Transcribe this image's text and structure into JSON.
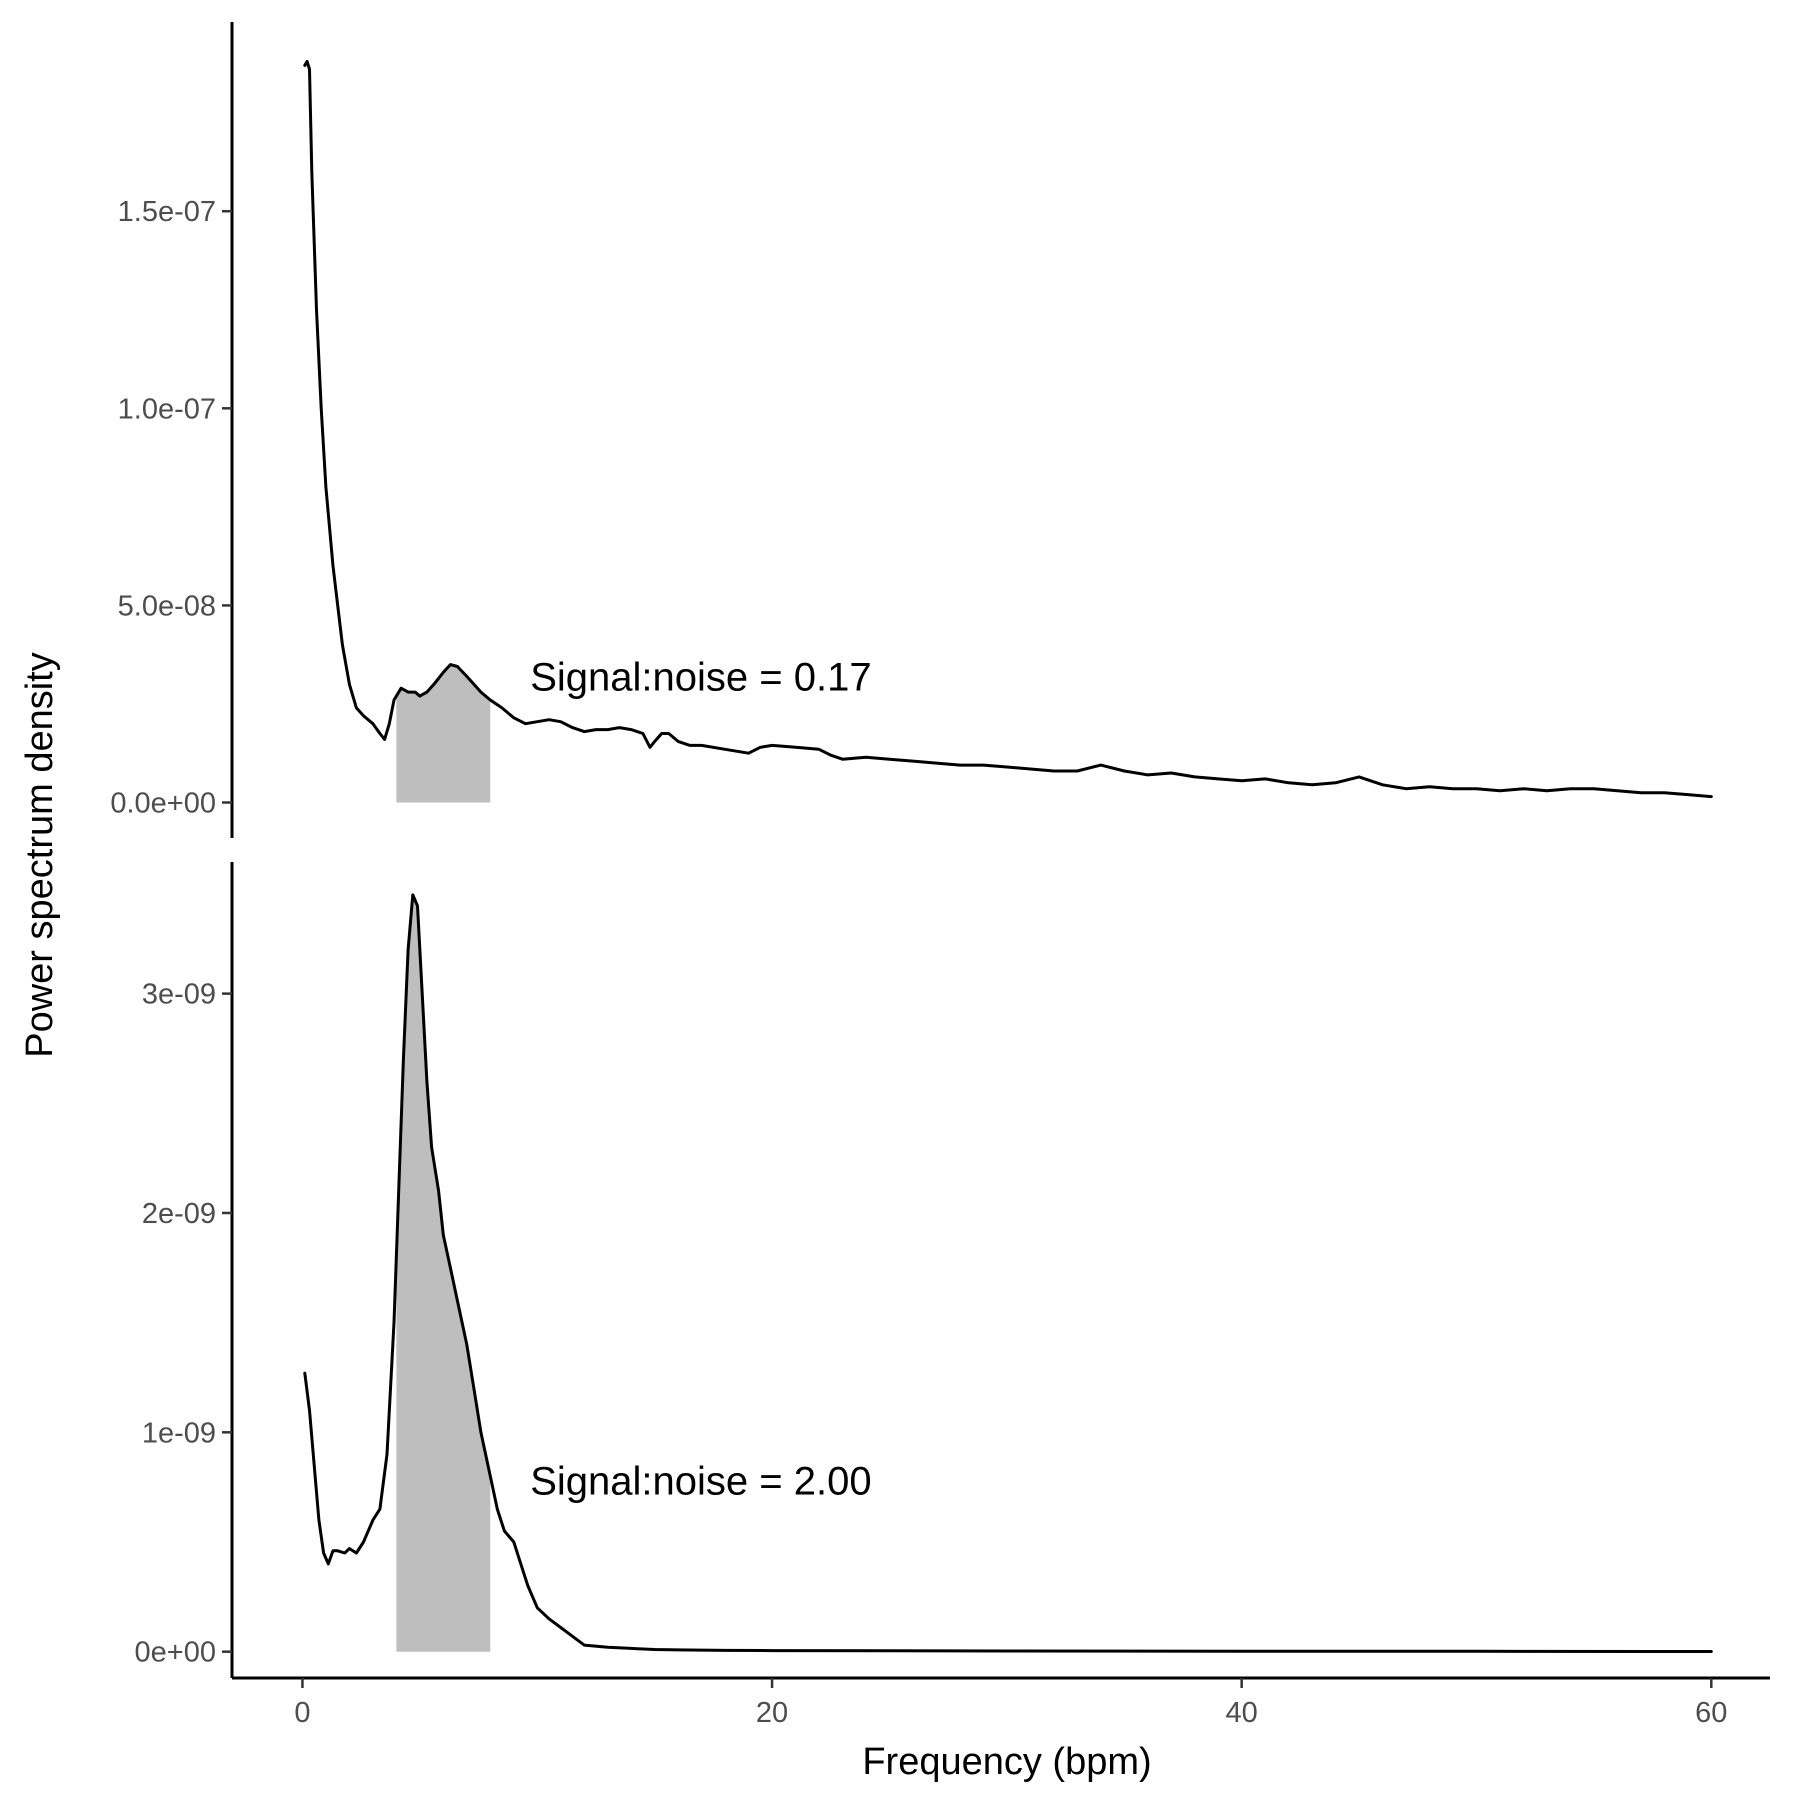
{
  "chart_data": {
    "type": "line",
    "xlabel": "Frequency (bpm)",
    "ylabel": "Power spectrum density",
    "colors": {
      "line": "#000000",
      "band": "#bebebe"
    },
    "shared_x": {
      "ticks": [
        0,
        20,
        40,
        60
      ],
      "tick_labels": [
        "0",
        "20",
        "40",
        "60"
      ],
      "xlim": [
        -3,
        62.5
      ]
    },
    "panels": [
      {
        "ylim": [
          -9e-09,
          1.98e-07
        ],
        "y_ticks": [
          0,
          5e-08,
          1e-07,
          1.5e-07
        ],
        "y_tick_labels": [
          "0.0e+00",
          "5.0e-08",
          "1.0e-07",
          "1.5e-07"
        ],
        "band": [
          4,
          8
        ],
        "annotation": {
          "text": "Signal:noise = 0.17",
          "x": 9.7,
          "y": 3.2e-08
        },
        "x": [
          0.1,
          0.2,
          0.3,
          0.4,
          0.6,
          0.8,
          1.0,
          1.3,
          1.5,
          1.7,
          2.0,
          2.3,
          2.6,
          3.0,
          3.3,
          3.5,
          3.7,
          3.9,
          4.2,
          4.5,
          4.8,
          5.0,
          5.3,
          5.6,
          6.0,
          6.3,
          6.6,
          7.0,
          7.3,
          7.6,
          8.0,
          8.5,
          9.0,
          9.5,
          10.0,
          10.5,
          11.0,
          11.5,
          12.0,
          12.5,
          13.0,
          13.5,
          14.0,
          14.5,
          14.8,
          15.0,
          15.3,
          15.6,
          16.0,
          16.5,
          17.0,
          18.0,
          19.0,
          19.5,
          20.0,
          21.0,
          22.0,
          22.5,
          23.0,
          24.0,
          25.0,
          26.0,
          27.0,
          28.0,
          29.0,
          30.0,
          31.0,
          32.0,
          33.0,
          34.0,
          35.0,
          36.0,
          37.0,
          38.0,
          39.0,
          40.0,
          41.0,
          42.0,
          43.0,
          44.0,
          45.0,
          46.0,
          47.0,
          48.0,
          49.0,
          50.0,
          51.0,
          52.0,
          53.0,
          54.0,
          55.0,
          56.0,
          57.0,
          58.0,
          59.0,
          60.0
        ],
        "y": [
          1.87e-07,
          1.88e-07,
          1.86e-07,
          1.6e-07,
          1.25e-07,
          1e-07,
          8e-08,
          6e-08,
          5e-08,
          4e-08,
          3e-08,
          2.4e-08,
          2.2e-08,
          2e-08,
          1.75e-08,
          1.6e-08,
          2e-08,
          2.6e-08,
          2.9e-08,
          2.8e-08,
          2.8e-08,
          2.7e-08,
          2.8e-08,
          3e-08,
          3.3e-08,
          3.5e-08,
          3.45e-08,
          3.2e-08,
          3e-08,
          2.8e-08,
          2.6e-08,
          2.4e-08,
          2.15e-08,
          2e-08,
          2.05e-08,
          2.1e-08,
          2.05e-08,
          1.9e-08,
          1.8e-08,
          1.85e-08,
          1.85e-08,
          1.9e-08,
          1.85e-08,
          1.75e-08,
          1.4e-08,
          1.55e-08,
          1.75e-08,
          1.75e-08,
          1.55e-08,
          1.45e-08,
          1.45e-08,
          1.35e-08,
          1.25e-08,
          1.4e-08,
          1.45e-08,
          1.4e-08,
          1.35e-08,
          1.2e-08,
          1.1e-08,
          1.15e-08,
          1.1e-08,
          1.05e-08,
          1e-08,
          9.5e-09,
          9.5e-09,
          9e-09,
          8.5e-09,
          8e-09,
          8e-09,
          9.5e-09,
          8e-09,
          7e-09,
          7.5e-09,
          6.5e-09,
          6e-09,
          5.5e-09,
          6e-09,
          5e-09,
          4.5e-09,
          5e-09,
          6.5e-09,
          4.5e-09,
          3.5e-09,
          4e-09,
          3.5e-09,
          3.5e-09,
          3e-09,
          3.5e-09,
          3e-09,
          3.5e-09,
          3.5e-09,
          3e-09,
          2.5e-09,
          2.5e-09,
          2e-09,
          1.5e-09
        ]
      },
      {
        "ylim": [
          -1.2e-10,
          3.6e-09
        ],
        "y_ticks": [
          0,
          1e-09,
          2e-09,
          3e-09
        ],
        "y_tick_labels": [
          "0e+00",
          "1e-09",
          "2e-09",
          "3e-09"
        ],
        "band": [
          4,
          8
        ],
        "annotation": {
          "text": "Signal:noise = 2.00",
          "x": 9.7,
          "y": 7.8e-10
        },
        "x": [
          0.1,
          0.3,
          0.5,
          0.7,
          0.9,
          1.1,
          1.3,
          1.5,
          1.8,
          2.0,
          2.3,
          2.6,
          3.0,
          3.3,
          3.6,
          3.9,
          4.1,
          4.3,
          4.5,
          4.7,
          4.9,
          5.1,
          5.3,
          5.5,
          5.8,
          6.0,
          6.3,
          6.6,
          7.0,
          7.3,
          7.6,
          8.0,
          8.3,
          8.6,
          9.0,
          9.3,
          9.6,
          10.0,
          10.5,
          11.0,
          11.5,
          12.0,
          13.0,
          14.0,
          15.0,
          16.0,
          18.0,
          20.0,
          25.0,
          30.0,
          40.0,
          50.0,
          60.0
        ],
        "y": [
          1.27e-09,
          1.1e-09,
          8.5e-10,
          6e-10,
          4.5e-10,
          4e-10,
          4.6e-10,
          4.6e-10,
          4.5e-10,
          4.7e-10,
          4.5e-10,
          5e-10,
          6e-10,
          6.5e-10,
          9e-10,
          1.5e-09,
          2.1e-09,
          2.7e-09,
          3.2e-09,
          3.45e-09,
          3.4e-09,
          3e-09,
          2.6e-09,
          2.3e-09,
          2.1e-09,
          1.9e-09,
          1.75e-09,
          1.6e-09,
          1.4e-09,
          1.2e-09,
          1e-09,
          8e-10,
          6.5e-10,
          5.5e-10,
          5e-10,
          4e-10,
          3e-10,
          2e-10,
          1.5e-10,
          1.1e-10,
          7e-11,
          3e-11,
          2e-11,
          1.5e-11,
          1e-11,
          8e-12,
          6e-12,
          5e-12,
          4e-12,
          3e-12,
          2e-12,
          1.5e-12,
          1e-12
        ]
      }
    ]
  }
}
